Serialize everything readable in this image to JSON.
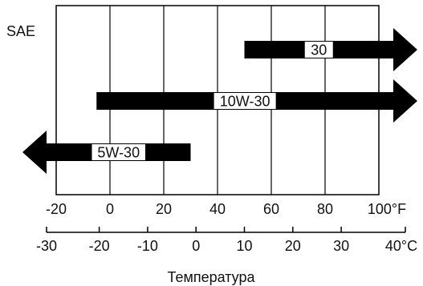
{
  "diagram": {
    "y_label": "SAE",
    "caption": "Температура",
    "fahrenheit_ticks": [
      "-20",
      "0",
      "20",
      "40",
      "60",
      "80",
      "100°F"
    ],
    "celsius_ticks": [
      "-30",
      "-20",
      "-10",
      "0",
      "10",
      "20",
      "30",
      "40°C"
    ],
    "bars": [
      {
        "label": "30",
        "from_f": 50,
        "to_f": 100,
        "direction": "right"
      },
      {
        "label": "10W-30",
        "from_f": -5,
        "to_f": 100,
        "direction": "right"
      },
      {
        "label": "5W-30",
        "from_f": -20,
        "to_f": 30,
        "direction": "left"
      }
    ],
    "colors": {
      "bar": "#000000",
      "label_box": "#ffffff",
      "grid": "#000000",
      "text": "#111111"
    }
  }
}
